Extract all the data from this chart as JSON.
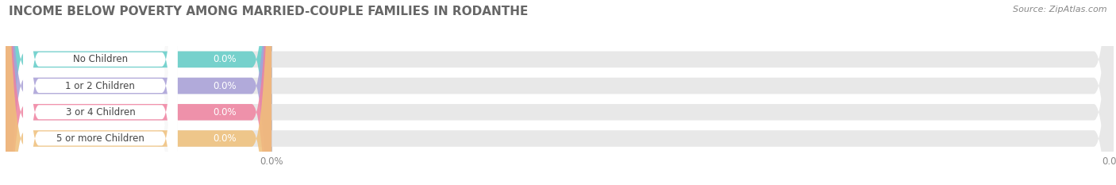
{
  "title": "INCOME BELOW POVERTY AMONG MARRIED-COUPLE FAMILIES IN RODANTHE",
  "source": "Source: ZipAtlas.com",
  "categories": [
    "No Children",
    "1 or 2 Children",
    "3 or 4 Children",
    "5 or more Children"
  ],
  "values": [
    0.0,
    0.0,
    0.0,
    0.0
  ],
  "bar_colors": [
    "#62cdc8",
    "#a89fd8",
    "#f082a0",
    "#f0c07a"
  ],
  "bar_bg_color": "#e8e8e8",
  "white_area_color": "#f8f8f8",
  "background_color": "#ffffff",
  "title_fontsize": 11,
  "label_fontsize": 8.5,
  "value_label": "0.0%",
  "source_fontsize": 8
}
